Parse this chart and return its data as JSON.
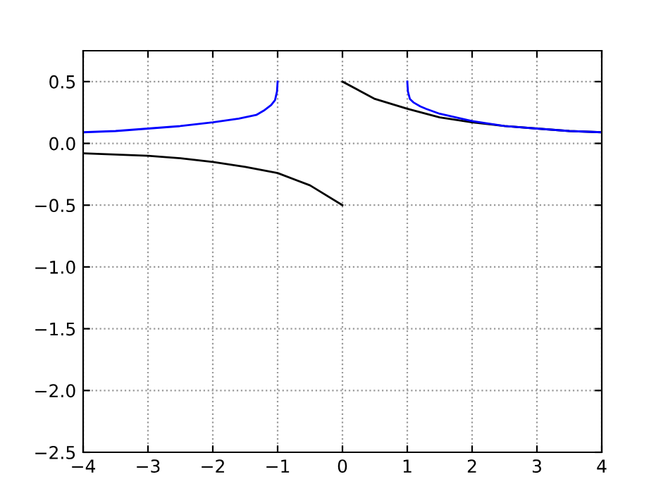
{
  "chart_data": {
    "type": "line",
    "xlim": [
      -4,
      4
    ],
    "ylim": [
      -2.5,
      0.75
    ],
    "xticks": [
      {
        "value": -4,
        "label": "−4"
      },
      {
        "value": -3,
        "label": "−3"
      },
      {
        "value": -2,
        "label": "−2"
      },
      {
        "value": -1,
        "label": "−1"
      },
      0,
      1,
      2,
      3,
      4
    ],
    "yticks": [
      {
        "value": -2.5,
        "label": "−2.5"
      },
      {
        "value": -2.0,
        "label": "−2.0"
      },
      {
        "value": -1.5,
        "label": "−1.5"
      },
      {
        "value": -1.0,
        "label": "−1.0"
      },
      {
        "value": -0.5,
        "label": "−0.5"
      },
      {
        "value": 0.0,
        "label": "0.0"
      },
      {
        "value": 0.5,
        "label": "0.5"
      }
    ],
    "grid": true,
    "line_style": "solid",
    "series": [
      {
        "color": "#0000ff",
        "x": [
          -4,
          -3.5,
          -3,
          -2.5,
          -2,
          -1.6,
          -1.33,
          -1.2,
          -1.1,
          -1.04,
          -1.01,
          -1
        ],
        "values": [
          0.09,
          0.1,
          0.12,
          0.14,
          0.17,
          0.2,
          0.23,
          0.27,
          0.31,
          0.35,
          0.42,
          0.5
        ]
      },
      {
        "color": "#000000",
        "x": [
          -4,
          -3.5,
          -3,
          -2.5,
          -2,
          -1.5,
          -1,
          -0.5,
          0
        ],
        "values": [
          -0.08,
          -0.09,
          -0.1,
          -0.12,
          -0.15,
          -0.19,
          -0.24,
          -0.34,
          -0.5
        ]
      },
      {
        "color": "#000000",
        "x": [
          0,
          0.5,
          1,
          1.5,
          2,
          2.5,
          3,
          3.5,
          4
        ],
        "values": [
          0.5,
          0.36,
          0.28,
          0.21,
          0.17,
          0.14,
          0.12,
          0.1,
          0.09
        ]
      },
      {
        "color": "#0000ff",
        "x": [
          1,
          1.01,
          1.04,
          1.1,
          1.2,
          1.29,
          1.5,
          2,
          2.5,
          3,
          3.5,
          4
        ],
        "values": [
          0.5,
          0.42,
          0.36,
          0.33,
          0.3,
          0.28,
          0.24,
          0.18,
          0.14,
          0.12,
          0.1,
          0.09
        ]
      }
    ]
  }
}
